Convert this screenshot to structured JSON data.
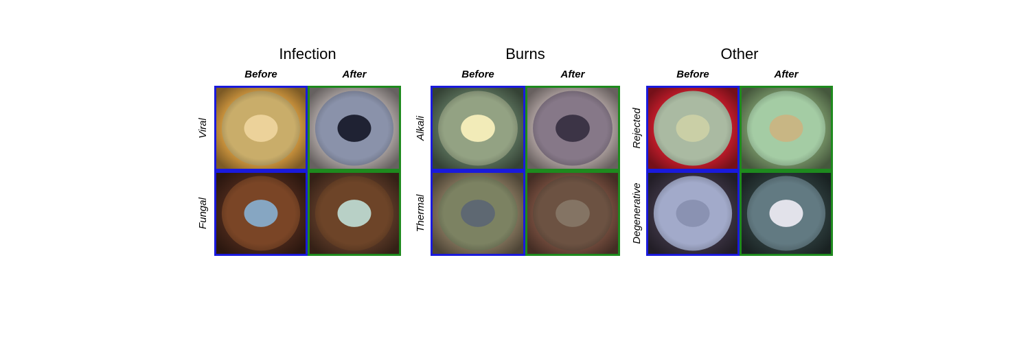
{
  "groups": [
    {
      "title": "Infection",
      "columns": [
        "Before",
        "After"
      ],
      "rows": [
        "Viral",
        "Fungal"
      ]
    },
    {
      "title": "Burns",
      "columns": [
        "Before",
        "After"
      ],
      "rows": [
        "Alkali",
        "Thermal"
      ]
    },
    {
      "title": "Other",
      "columns": [
        "Before",
        "After"
      ],
      "rows": [
        "Rejected",
        "Degenerative"
      ]
    }
  ]
}
